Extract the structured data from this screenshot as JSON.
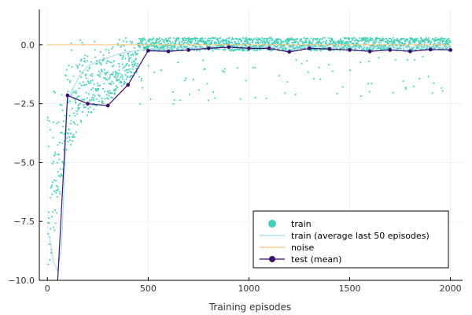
{
  "chart_data": {
    "type": "scatter",
    "xlabel": "Training episodes",
    "ylabel": "",
    "title": "",
    "xlim": [
      -40,
      2060
    ],
    "ylim": [
      -10.0,
      1.5
    ],
    "xticks": [
      0,
      500,
      1000,
      1500,
      2000
    ],
    "xtick_labels": [
      "0",
      "500",
      "1000",
      "1500",
      "2000"
    ],
    "yticks": [
      0.0,
      -2.5,
      -5.0,
      -7.5,
      -10.0
    ],
    "ytick_labels": [
      "0.0",
      "−2.5",
      "−5.0",
      "−7.5",
      "−10.0"
    ],
    "grid": true,
    "legend_position": "bottom-right",
    "series": [
      {
        "name": "train",
        "kind": "scatter",
        "color": "#40d0b8",
        "description_values": "one point per training episode, episodes 1-2000; rises from about -10 near episode 0 to about 0 by episode 150, then mostly between -0.3 and 0.3 with occasional dips to -2.5",
        "x_range": [
          1,
          2000
        ],
        "approx_envelope": [
          {
            "x": 0,
            "y_low": -10.0,
            "y_high": -2.5
          },
          {
            "x": 100,
            "y_low": -4.5,
            "y_high": 0.2
          },
          {
            "x": 200,
            "y_low": -3.0,
            "y_high": 0.3
          },
          {
            "x": 300,
            "y_low": -2.5,
            "y_high": 0.3
          },
          {
            "x": 400,
            "y_low": -1.5,
            "y_high": 0.3
          },
          {
            "x": 500,
            "y_low": -0.8,
            "y_high": 0.3
          },
          {
            "x": 1000,
            "y_low": -0.5,
            "y_high": 0.3
          },
          {
            "x": 2000,
            "y_low": -0.5,
            "y_high": 0.3
          }
        ]
      },
      {
        "name": "train (average last 50 episodes)",
        "kind": "line",
        "color": "#a8d8e8",
        "x": [
          10,
          30,
          50,
          70,
          90,
          100,
          130,
          160,
          200,
          250,
          300,
          350,
          400,
          450,
          500,
          600,
          800,
          1000,
          1200,
          1400,
          1600,
          1800,
          2000
        ],
        "y": [
          -8.1,
          -9.2,
          -9.6,
          -8.6,
          -4.5,
          -2.4,
          -1.8,
          -1.3,
          -0.9,
          -0.7,
          -0.55,
          -0.4,
          -0.3,
          -0.25,
          -0.2,
          -0.15,
          -0.12,
          -0.12,
          -0.11,
          -0.1,
          -0.1,
          -0.1,
          -0.1
        ]
      },
      {
        "name": "noise",
        "kind": "line",
        "color": "#f5c37a",
        "x": [
          0,
          2000
        ],
        "y": [
          0.0,
          0.0
        ]
      },
      {
        "name": "test (mean)",
        "kind": "line+markers",
        "color": "#3b0f70",
        "x": [
          50,
          100,
          200,
          300,
          400,
          500,
          600,
          700,
          800,
          900,
          1000,
          1100,
          1200,
          1300,
          1400,
          1500,
          1600,
          1700,
          1800,
          1900,
          2000
        ],
        "y": [
          -10.2,
          -2.15,
          -2.5,
          -2.58,
          -1.7,
          -0.25,
          -0.28,
          -0.22,
          -0.15,
          -0.1,
          -0.15,
          -0.15,
          -0.3,
          -0.15,
          -0.18,
          -0.22,
          -0.28,
          -0.22,
          -0.28,
          -0.2,
          -0.22
        ]
      }
    ]
  }
}
